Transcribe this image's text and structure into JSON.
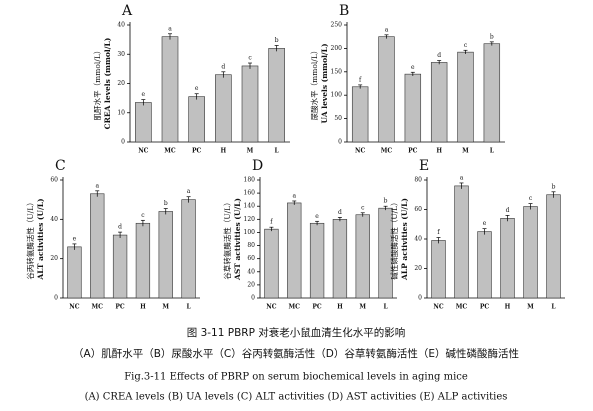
{
  "chart_data": [
    {
      "type": "bar",
      "label": "A",
      "ylabel": [
        "肌酐水平（mmol/L）",
        "CREA levels (mmol/L)"
      ],
      "categories": [
        "NC",
        "MC",
        "PC",
        "H",
        "M",
        "L"
      ],
      "values": [
        13.5,
        36,
        15.5,
        23,
        26,
        32
      ],
      "errors": [
        1,
        1,
        1,
        1,
        1,
        1
      ],
      "letters": [
        "e",
        "a",
        "e",
        "d",
        "c",
        "b"
      ],
      "color": "#c0c0c0",
      "ylim": [
        0,
        40
      ],
      "yticks": [
        0,
        10,
        20,
        30,
        40
      ]
    },
    {
      "type": "bar",
      "label": "B",
      "ylabel": [
        "尿酸水平（mmol/L）",
        "UA levels (mmol/L)"
      ],
      "categories": [
        "NC",
        "MC",
        "PC",
        "H",
        "M",
        "L"
      ],
      "values": [
        118,
        225,
        145,
        170,
        192,
        210
      ],
      "errors": [
        4,
        4,
        4,
        4,
        4,
        4
      ],
      "letters": [
        "f",
        "a",
        "e",
        "d",
        "c",
        "b"
      ],
      "color": "#c0c0c0",
      "ylim": [
        0,
        250
      ],
      "yticks": [
        0,
        50,
        100,
        150,
        200,
        250
      ]
    },
    {
      "type": "bar",
      "label": "C",
      "ylabel": [
        "谷丙转氨酶活性（U/L）",
        "ALT activities (U/L)"
      ],
      "categories": [
        "NC",
        "MC",
        "PC",
        "H",
        "M",
        "L"
      ],
      "values": [
        26,
        53,
        32,
        38,
        44,
        50
      ],
      "errors": [
        1.5,
        1.5,
        1.5,
        1.5,
        1.5,
        1.5
      ],
      "letters": [
        "e",
        "a",
        "d",
        "c",
        "b",
        "a"
      ],
      "color": "#c0c0c0",
      "ylim": [
        0,
        60
      ],
      "yticks": [
        0,
        20,
        40,
        60
      ]
    },
    {
      "type": "bar",
      "label": "D",
      "ylabel": [
        "谷草转氨酶活性（U/L）",
        "AST activities (U/L)"
      ],
      "categories": [
        "NC",
        "MC",
        "PC",
        "H",
        "M",
        "L"
      ],
      "values": [
        105,
        145,
        114,
        120,
        127,
        137
      ],
      "errors": [
        3,
        3,
        3,
        3,
        3,
        3
      ],
      "letters": [
        "f",
        "a",
        "e",
        "d",
        "c",
        "b"
      ],
      "color": "#c0c0c0",
      "ylim": [
        0,
        180
      ],
      "yticks": [
        0,
        20,
        40,
        60,
        80,
        100,
        120,
        140,
        160,
        180
      ]
    },
    {
      "type": "bar",
      "label": "E",
      "ylabel": [
        "碱性磷酸酶活性（U/L）",
        "ALP activities (U/L)"
      ],
      "categories": [
        "NC",
        "MC",
        "PC",
        "H",
        "M",
        "L"
      ],
      "values": [
        39,
        76,
        45,
        54,
        62,
        70
      ],
      "errors": [
        2,
        2,
        2,
        2,
        2,
        2
      ],
      "letters": [
        "f",
        "a",
        "e",
        "d",
        "c",
        "b"
      ],
      "color": "#c0c0c0",
      "ylim": [
        0,
        80
      ],
      "yticks": [
        0,
        20,
        40,
        60,
        80
      ]
    }
  ],
  "figure": {
    "caption": [
      "图 3-11 PBRP 对衰老小鼠血清生化水平的影响",
      "（A）肌酐水平（B）尿酸水平（C）谷丙转氨酶活性（D）谷草转氨酶活性（E）碱性磷酸酶活性",
      "Fig.3-11 Effects of PBRP on serum biochemical levels in aging mice",
      "(A) CREA levels (B) UA levels (C) ALT activities (D) AST activities (E) ALP activities"
    ]
  }
}
